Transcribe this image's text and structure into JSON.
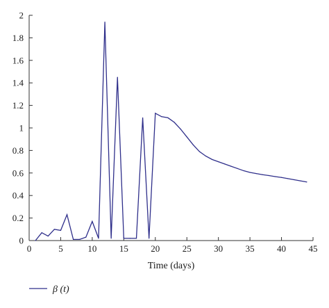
{
  "chart_data": {
    "type": "line",
    "xlabel": "Time (days)",
    "ylabel": "",
    "xlim": [
      0,
      45
    ],
    "ylim": [
      0,
      2
    ],
    "x_ticks": [
      0,
      5,
      10,
      15,
      20,
      25,
      30,
      35,
      40,
      45
    ],
    "y_ticks": [
      0,
      0.2,
      0.4,
      0.6,
      0.8,
      1,
      1.2,
      1.4,
      1.6,
      1.8,
      2
    ],
    "grid": false,
    "legend_position": "bottom-left",
    "series": [
      {
        "name": "β (t)",
        "color": "#2e2e8a",
        "x": [
          1,
          2,
          3,
          4,
          5,
          6,
          7,
          8,
          9,
          10,
          11,
          12,
          13,
          14,
          15,
          16,
          17,
          18,
          19,
          20,
          21,
          22,
          23,
          24,
          25,
          26,
          27,
          28,
          29,
          30,
          31,
          32,
          33,
          34,
          35,
          36,
          37,
          38,
          39,
          40,
          41,
          42,
          43,
          44
        ],
        "values": [
          0.0,
          0.07,
          0.04,
          0.1,
          0.09,
          0.23,
          0.01,
          0.01,
          0.03,
          0.17,
          0.02,
          1.94,
          0.02,
          1.45,
          0.02,
          0.02,
          0.02,
          1.09,
          0.02,
          1.13,
          1.1,
          1.09,
          1.05,
          0.99,
          0.92,
          0.85,
          0.79,
          0.75,
          0.72,
          0.7,
          0.68,
          0.66,
          0.64,
          0.62,
          0.605,
          0.595,
          0.585,
          0.577,
          0.568,
          0.56,
          0.55,
          0.54,
          0.53,
          0.52
        ]
      }
    ]
  }
}
